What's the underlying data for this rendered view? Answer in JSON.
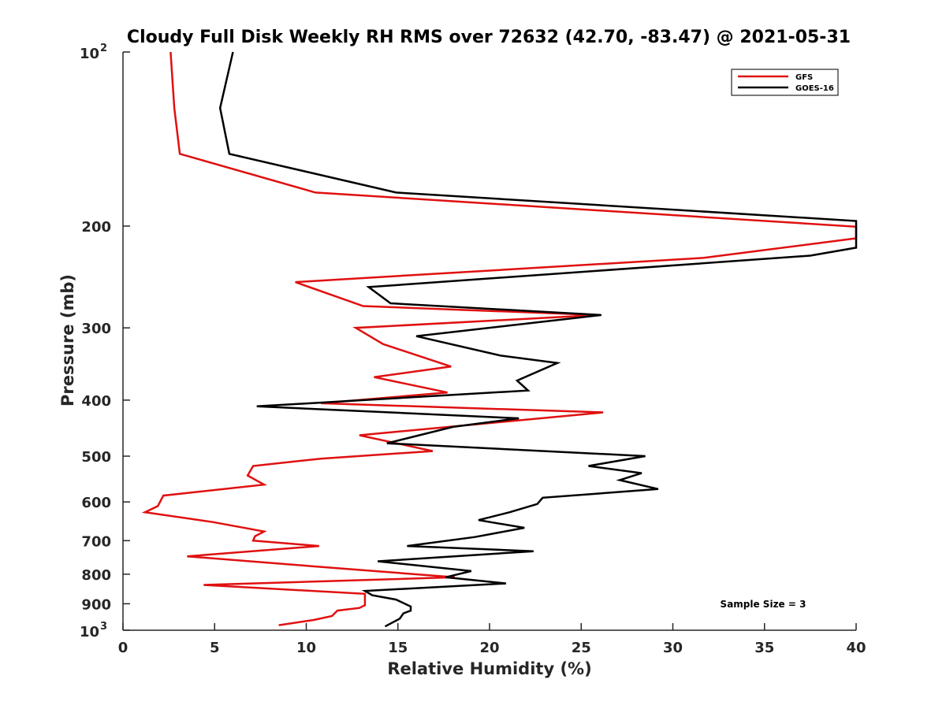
{
  "chart_data": {
    "type": "line",
    "title": "Cloudy Full Disk Weekly RH RMS over 72632 (42.70, -83.47) @ 2021-05-31",
    "xlabel": "Relative Humidity (%)",
    "ylabel": "Pressure (mb)",
    "xlim": [
      0,
      40
    ],
    "ylim": [
      100,
      1000
    ],
    "y_scale": "log",
    "y_reversed": true,
    "grid": false,
    "legend_position": "top-right",
    "x_ticks": [
      "0",
      "5",
      "10",
      "15",
      "20",
      "25",
      "30",
      "35",
      "40"
    ],
    "y_ticks": [
      {
        "value": 100,
        "label": "10",
        "sup": "2"
      },
      {
        "value": 200,
        "label": "200",
        "sup": ""
      },
      {
        "value": 300,
        "label": "300",
        "sup": ""
      },
      {
        "value": 400,
        "label": "400",
        "sup": ""
      },
      {
        "value": 500,
        "label": "500",
        "sup": ""
      },
      {
        "value": 600,
        "label": "600",
        "sup": ""
      },
      {
        "value": 700,
        "label": "700",
        "sup": ""
      },
      {
        "value": 800,
        "label": "800",
        "sup": ""
      },
      {
        "value": 900,
        "label": "900",
        "sup": ""
      },
      {
        "value": 1000,
        "label": "10",
        "sup": "3"
      }
    ],
    "annotation": "Sample Size = 3",
    "series": [
      {
        "name": "GFS",
        "color": "#e01010",
        "points": [
          [
            2.6,
            100
          ],
          [
            2.8,
            125
          ],
          [
            3.1,
            150
          ],
          [
            10.5,
            175
          ],
          [
            40,
            200.5
          ],
          [
            40,
            210
          ],
          [
            31.7,
            227
          ],
          [
            9.4,
            250
          ],
          [
            13.1,
            275
          ],
          [
            25.9,
            285
          ],
          [
            12.7,
            300
          ],
          [
            14.2,
            320
          ],
          [
            17.9,
            350
          ],
          [
            13.7,
            365
          ],
          [
            17.7,
            388
          ],
          [
            10.8,
            405
          ],
          [
            26.2,
            420
          ],
          [
            12.9,
            460
          ],
          [
            16.9,
            490
          ],
          [
            10.8,
            505
          ],
          [
            7.1,
            520
          ],
          [
            6.8,
            540
          ],
          [
            7.7,
            560
          ],
          [
            2.2,
            585
          ],
          [
            1.9,
            610
          ],
          [
            1.2,
            625
          ],
          [
            4.9,
            650
          ],
          [
            7.7,
            675
          ],
          [
            7.2,
            688
          ],
          [
            7.1,
            700
          ],
          [
            10.7,
            715
          ],
          [
            3.5,
            745
          ],
          [
            10.3,
            775
          ],
          [
            18.1,
            810
          ],
          [
            4.4,
            835
          ],
          [
            13.2,
            865
          ],
          [
            13.2,
            905
          ],
          [
            12.9,
            915
          ],
          [
            11.7,
            925
          ],
          [
            11.4,
            945
          ],
          [
            10.4,
            960
          ],
          [
            8.5,
            980
          ]
        ]
      },
      {
        "name": "GOES-16",
        "color": "#000000",
        "points": [
          [
            6.0,
            100
          ],
          [
            5.3,
            125
          ],
          [
            5.8,
            150
          ],
          [
            14.9,
            175
          ],
          [
            40,
            196
          ],
          [
            40,
            218
          ],
          [
            37.5,
            225
          ],
          [
            13.4,
            255
          ],
          [
            14.6,
            272
          ],
          [
            26.1,
            285
          ],
          [
            16.0,
            310
          ],
          [
            20.6,
            335
          ],
          [
            23.7,
            345
          ],
          [
            21.5,
            370
          ],
          [
            22.1,
            385
          ],
          [
            7.3,
            410
          ],
          [
            21.6,
            430
          ],
          [
            18.0,
            445
          ],
          [
            14.4,
            475
          ],
          [
            28.5,
            500
          ],
          [
            25.4,
            520
          ],
          [
            28.3,
            535
          ],
          [
            27.1,
            550
          ],
          [
            29.2,
            570
          ],
          [
            22.9,
            590
          ],
          [
            22.6,
            605
          ],
          [
            21.1,
            625
          ],
          [
            19.4,
            645
          ],
          [
            21.9,
            665
          ],
          [
            19.2,
            690
          ],
          [
            15.5,
            715
          ],
          [
            22.4,
            730
          ],
          [
            13.9,
            760
          ],
          [
            19.0,
            790
          ],
          [
            17.6,
            810
          ],
          [
            20.9,
            830
          ],
          [
            13.2,
            855
          ],
          [
            13.6,
            870
          ],
          [
            14.9,
            885
          ],
          [
            15.7,
            910
          ],
          [
            15.7,
            925
          ],
          [
            15.3,
            935
          ],
          [
            15.1,
            955
          ],
          [
            14.3,
            985
          ]
        ]
      }
    ]
  }
}
